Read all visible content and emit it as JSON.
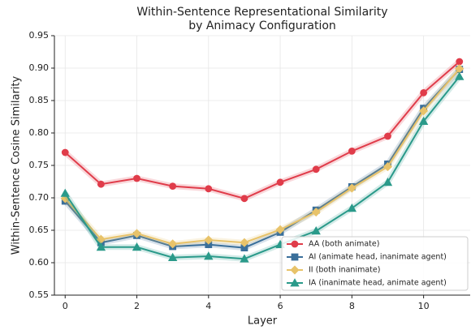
{
  "chart_data": {
    "type": "line",
    "title_lines": [
      "Within-Sentence Representational Similarity",
      "by Animacy Configuration"
    ],
    "x_label": "Layer",
    "y_label": "Within-Sentence Cosine Similarity",
    "x": [
      0,
      1,
      2,
      3,
      4,
      5,
      6,
      7,
      8,
      9,
      10,
      11
    ],
    "series": [
      {
        "name": "AA (both animate)",
        "color": "#e03c4a",
        "marker": "circle",
        "values": [
          0.77,
          0.721,
          0.73,
          0.718,
          0.714,
          0.699,
          0.724,
          0.744,
          0.772,
          0.795,
          0.862,
          0.91
        ]
      },
      {
        "name": "AI (animate head, inanimate agent)",
        "color": "#3a6f9a",
        "marker": "square",
        "values": [
          0.695,
          0.631,
          0.642,
          0.625,
          0.628,
          0.623,
          0.647,
          0.681,
          0.717,
          0.752,
          0.838,
          0.898
        ]
      },
      {
        "name": "II (both inanimate)",
        "color": "#e8c36a",
        "marker": "diamond",
        "values": [
          0.699,
          0.636,
          0.645,
          0.629,
          0.635,
          0.631,
          0.651,
          0.678,
          0.715,
          0.748,
          0.834,
          0.899
        ]
      },
      {
        "name": "IA (inanimate head, animate agent)",
        "color": "#2a9a8a",
        "marker": "triangle",
        "values": [
          0.707,
          0.624,
          0.624,
          0.608,
          0.61,
          0.606,
          0.628,
          0.649,
          0.684,
          0.724,
          0.818,
          0.887
        ]
      }
    ],
    "xlim": [
      -0.3,
      11.3
    ],
    "xticks": [
      0,
      2,
      4,
      6,
      8,
      10
    ],
    "ylim": [
      0.55,
      0.95
    ],
    "yticks": [
      0.55,
      {
        "value": 0.6,
        "label": "0.60"
      },
      0.65,
      {
        "value": 0.7,
        "label": "0.70"
      },
      0.75,
      {
        "value": 0.8,
        "label": "0.80"
      },
      0.85,
      {
        "value": 0.9,
        "label": "0.90"
      },
      0.95
    ],
    "grid": true,
    "legend": "lower right"
  }
}
